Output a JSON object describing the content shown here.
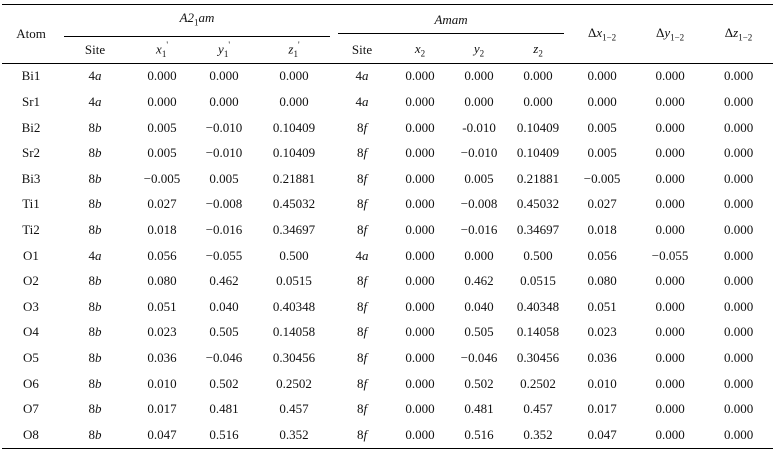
{
  "header": {
    "atom": "Atom",
    "group1": "A2",
    "group1_sub": "1",
    "group1_suffix": "am",
    "group2": "Amam",
    "site": "Site",
    "x1": "x",
    "x1_sub": "1",
    "y1": "y",
    "y1_sub": "1",
    "z1": "z",
    "z1_sub": "1",
    "prime": "'",
    "x2": "x",
    "x2_sub": "2",
    "y2": "y",
    "y2_sub": "2",
    "z2": "z",
    "z2_sub": "2",
    "dx": "Δx",
    "dx_sub": "1−2",
    "dy": "Δy",
    "dy_sub": "1−2",
    "dz": "Δz",
    "dz_sub": "1−2"
  },
  "rows": [
    {
      "atom": "Bi1",
      "site1_num": "4",
      "site1_let": "a",
      "x1": "0.000",
      "y1": "0.000",
      "z1": "0.000",
      "site2_num": "4",
      "site2_let": "a",
      "x2": "0.000",
      "y2": "0.000",
      "z2": "0.000",
      "dx": "0.000",
      "dy": "0.000",
      "dz": "0.000"
    },
    {
      "atom": "Sr1",
      "site1_num": "4",
      "site1_let": "a",
      "x1": "0.000",
      "y1": "0.000",
      "z1": "0.000",
      "site2_num": "4",
      "site2_let": "a",
      "x2": "0.000",
      "y2": "0.000",
      "z2": "0.000",
      "dx": "0.000",
      "dy": "0.000",
      "dz": "0.000"
    },
    {
      "atom": "Bi2",
      "site1_num": "8",
      "site1_let": "b",
      "x1": "0.005",
      "y1": "−0.010",
      "z1": "0.10409",
      "site2_num": "8",
      "site2_let": "f",
      "x2": "0.000",
      "y2": "-0.010",
      "z2": "0.10409",
      "dx": "0.005",
      "dy": "0.000",
      "dz": "0.000"
    },
    {
      "atom": "Sr2",
      "site1_num": "8",
      "site1_let": "b",
      "x1": "0.005",
      "y1": "−0.010",
      "z1": "0.10409",
      "site2_num": "8",
      "site2_let": "f",
      "x2": "0.000",
      "y2": "−0.010",
      "z2": "0.10409",
      "dx": "0.005",
      "dy": "0.000",
      "dz": "0.000"
    },
    {
      "atom": "Bi3",
      "site1_num": "8",
      "site1_let": "b",
      "x1": "−0.005",
      "y1": "0.005",
      "z1": "0.21881",
      "site2_num": "8",
      "site2_let": "f",
      "x2": "0.000",
      "y2": "0.005",
      "z2": "0.21881",
      "dx": "−0.005",
      "dy": "0.000",
      "dz": "0.000"
    },
    {
      "atom": "Ti1",
      "site1_num": "8",
      "site1_let": "b",
      "x1": "0.027",
      "y1": "−0.008",
      "z1": "0.45032",
      "site2_num": "8",
      "site2_let": "f",
      "x2": "0.000",
      "y2": "−0.008",
      "z2": "0.45032",
      "dx": "0.027",
      "dy": "0.000",
      "dz": "0.000"
    },
    {
      "atom": "Ti2",
      "site1_num": "8",
      "site1_let": "b",
      "x1": "0.018",
      "y1": "−0.016",
      "z1": "0.34697",
      "site2_num": "8",
      "site2_let": "f",
      "x2": "0.000",
      "y2": "−0.016",
      "z2": "0.34697",
      "dx": "0.018",
      "dy": "0.000",
      "dz": "0.000"
    },
    {
      "atom": "O1",
      "site1_num": "4",
      "site1_let": "a",
      "x1": "0.056",
      "y1": "−0.055",
      "z1": "0.500",
      "site2_num": "4",
      "site2_let": "a",
      "x2": "0.000",
      "y2": "0.000",
      "z2": "0.500",
      "dx": "0.056",
      "dy": "−0.055",
      "dz": "0.000"
    },
    {
      "atom": "O2",
      "site1_num": "8",
      "site1_let": "b",
      "x1": "0.080",
      "y1": "0.462",
      "z1": "0.0515",
      "site2_num": "8",
      "site2_let": "f",
      "x2": "0.000",
      "y2": "0.462",
      "z2": "0.0515",
      "dx": "0.080",
      "dy": "0.000",
      "dz": "0.000"
    },
    {
      "atom": "O3",
      "site1_num": "8",
      "site1_let": "b",
      "x1": "0.051",
      "y1": "0.040",
      "z1": "0.40348",
      "site2_num": "8",
      "site2_let": "f",
      "x2": "0.000",
      "y2": "0.040",
      "z2": "0.40348",
      "dx": "0.051",
      "dy": "0.000",
      "dz": "0.000"
    },
    {
      "atom": "O4",
      "site1_num": "8",
      "site1_let": "b",
      "x1": "0.023",
      "y1": "0.505",
      "z1": "0.14058",
      "site2_num": "8",
      "site2_let": "f",
      "x2": "0.000",
      "y2": "0.505",
      "z2": "0.14058",
      "dx": "0.023",
      "dy": "0.000",
      "dz": "0.000"
    },
    {
      "atom": "O5",
      "site1_num": "8",
      "site1_let": "b",
      "x1": "0.036",
      "y1": "−0.046",
      "z1": "0.30456",
      "site2_num": "8",
      "site2_let": "f",
      "x2": "0.000",
      "y2": "−0.046",
      "z2": "0.30456",
      "dx": "0.036",
      "dy": "0.000",
      "dz": "0.000"
    },
    {
      "atom": "O6",
      "site1_num": "8",
      "site1_let": "b",
      "x1": "0.010",
      "y1": "0.502",
      "z1": "0.2502",
      "site2_num": "8",
      "site2_let": "f",
      "x2": "0.000",
      "y2": "0.502",
      "z2": "0.2502",
      "dx": "0.010",
      "dy": "0.000",
      "dz": "0.000"
    },
    {
      "atom": "O7",
      "site1_num": "8",
      "site1_let": "b",
      "x1": "0.017",
      "y1": "0.481",
      "z1": "0.457",
      "site2_num": "8",
      "site2_let": "f",
      "x2": "0.000",
      "y2": "0.481",
      "z2": "0.457",
      "dx": "0.017",
      "dy": "0.000",
      "dz": "0.000"
    },
    {
      "atom": "O8",
      "site1_num": "8",
      "site1_let": "b",
      "x1": "0.047",
      "y1": "0.516",
      "z1": "0.352",
      "site2_num": "8",
      "site2_let": "f",
      "x2": "0.000",
      "y2": "0.516",
      "z2": "0.352",
      "dx": "0.047",
      "dy": "0.000",
      "dz": "0.000"
    }
  ]
}
